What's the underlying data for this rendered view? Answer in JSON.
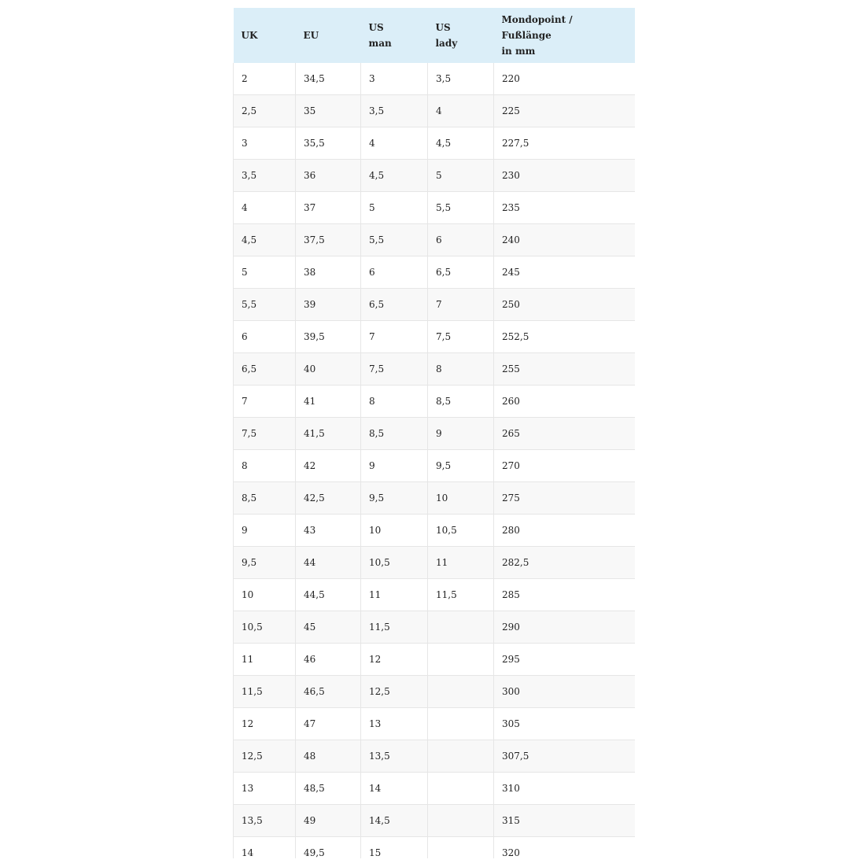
{
  "table": {
    "headers": [
      [
        "UK"
      ],
      [
        "EU"
      ],
      [
        "US",
        "man"
      ],
      [
        "US",
        "lady"
      ],
      [
        "Mondopoint /",
        "Fußlänge",
        "in mm"
      ]
    ],
    "rows": [
      [
        "2",
        "34,5",
        "3",
        "3,5",
        "220"
      ],
      [
        "2,5",
        "35",
        "3,5",
        "4",
        "225"
      ],
      [
        "3",
        "35,5",
        "4",
        "4,5",
        "227,5"
      ],
      [
        "3,5",
        "36",
        "4,5",
        "5",
        "230"
      ],
      [
        "4",
        "37",
        "5",
        "5,5",
        "235"
      ],
      [
        "4,5",
        "37,5",
        "5,5",
        "6",
        "240"
      ],
      [
        "5",
        "38",
        "6",
        "6,5",
        "245"
      ],
      [
        "5,5",
        "39",
        "6,5",
        "7",
        "250"
      ],
      [
        "6",
        "39,5",
        "7",
        "7,5",
        "252,5"
      ],
      [
        "6,5",
        "40",
        "7,5",
        "8",
        "255"
      ],
      [
        "7",
        "41",
        "8",
        "8,5",
        "260"
      ],
      [
        "7,5",
        "41,5",
        "8,5",
        "9",
        "265"
      ],
      [
        "8",
        "42",
        "9",
        "9,5",
        "270"
      ],
      [
        "8,5",
        "42,5",
        "9,5",
        "10",
        "275"
      ],
      [
        "9",
        "43",
        "10",
        "10,5",
        "280"
      ],
      [
        "9,5",
        "44",
        "10,5",
        "11",
        "282,5"
      ],
      [
        "10",
        "44,5",
        "11",
        "11,5",
        "285"
      ],
      [
        "10,5",
        "45",
        "11,5",
        "",
        "290"
      ],
      [
        "11",
        "46",
        "12",
        "",
        "295"
      ],
      [
        "11,5",
        "46,5",
        "12,5",
        "",
        "300"
      ],
      [
        "12",
        "47",
        "13",
        "",
        "305"
      ],
      [
        "12,5",
        "48",
        "13,5",
        "",
        "307,5"
      ],
      [
        "13",
        "48,5",
        "14",
        "",
        "310"
      ],
      [
        "13,5",
        "49",
        "14,5",
        "",
        "315"
      ],
      [
        "14",
        "49,5",
        "15",
        "",
        "320"
      ]
    ]
  },
  "colors": {
    "header_bg": "#dbeef8",
    "stripe_bg": "#f8f8f8",
    "border": "#e6e6e6"
  }
}
